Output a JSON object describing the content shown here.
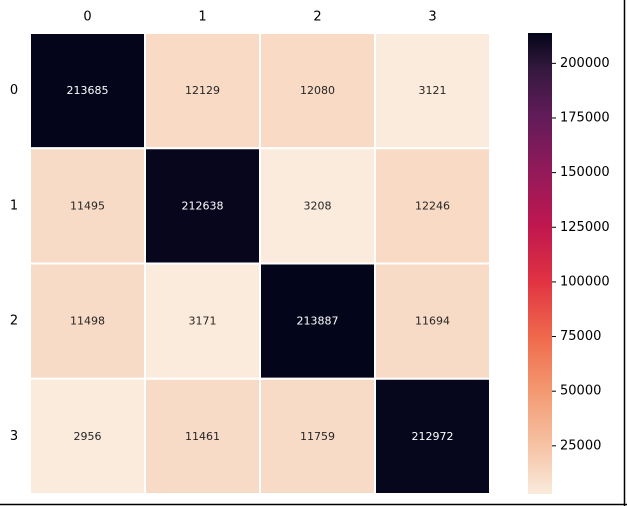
{
  "chart_data": {
    "type": "heatmap",
    "title": "",
    "xlabel": "",
    "ylabel": "",
    "x_categories": [
      "0",
      "1",
      "2",
      "3"
    ],
    "y_categories": [
      "0",
      "1",
      "2",
      "3"
    ],
    "x_tick_position": "top",
    "values": [
      [
        213685,
        12129,
        12080,
        3121
      ],
      [
        11495,
        212638,
        3208,
        12246
      ],
      [
        11498,
        3171,
        213887,
        11694
      ],
      [
        2956,
        11461,
        11759,
        212972
      ]
    ],
    "colormap": "rocket_r",
    "colorbar": {
      "min": 2956,
      "max": 213887,
      "ticks": [
        25000,
        50000,
        75000,
        100000,
        125000,
        150000,
        175000,
        200000
      ],
      "tick_labels": [
        "25000",
        "50000",
        "75000",
        "100000",
        "125000",
        "150000",
        "175000",
        "200000"
      ]
    },
    "grid": false,
    "cell_separator_color": "#ffffff"
  }
}
